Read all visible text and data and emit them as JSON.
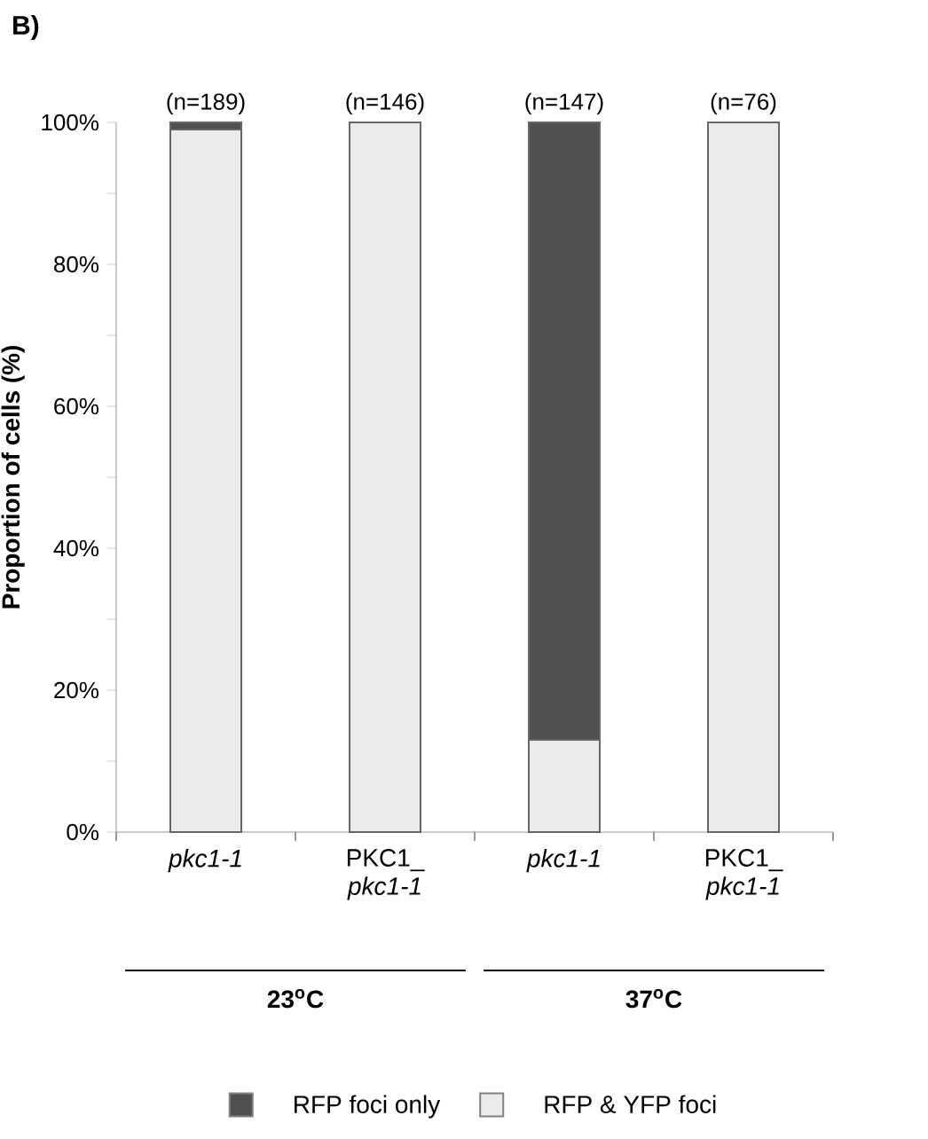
{
  "chart_data": {
    "type": "bar",
    "stacked": true,
    "title": "B)",
    "ylabel": "Proportion of cells (%)",
    "categories": [
      "*pkc1-1*",
      "PKC1_ *pkc1-1*",
      "*pkc1-1*",
      "PKC1_ *pkc1-1*"
    ],
    "series": [
      {
        "name": "RFP & YFP foci",
        "color": "#ebebeb",
        "values": [
          99,
          100,
          13,
          100
        ]
      },
      {
        "name": "RFP foci only",
        "color": "#505050",
        "values": [
          1,
          0,
          87,
          0
        ]
      }
    ],
    "ylim": [
      0,
      100
    ],
    "yticks": [
      {
        "value": 0,
        "label": "0%"
      },
      {
        "value": 10,
        "label": null
      },
      {
        "value": 20,
        "label": "20%"
      },
      {
        "value": 30,
        "label": null
      },
      {
        "value": 40,
        "label": "40%"
      },
      {
        "value": 50,
        "label": null
      },
      {
        "value": 60,
        "label": "60%"
      },
      {
        "value": 70,
        "label": null
      },
      {
        "value": 80,
        "label": "80%"
      },
      {
        "value": 90,
        "label": null
      },
      {
        "value": 100,
        "label": "100%"
      }
    ],
    "legend": "bottom",
    "annotations": [
      "(n=189)",
      "(n=146)",
      "(n=147)",
      "(n=76)",
      "23$^{o}$C",
      "37$^{o}$C"
    ]
  }
}
